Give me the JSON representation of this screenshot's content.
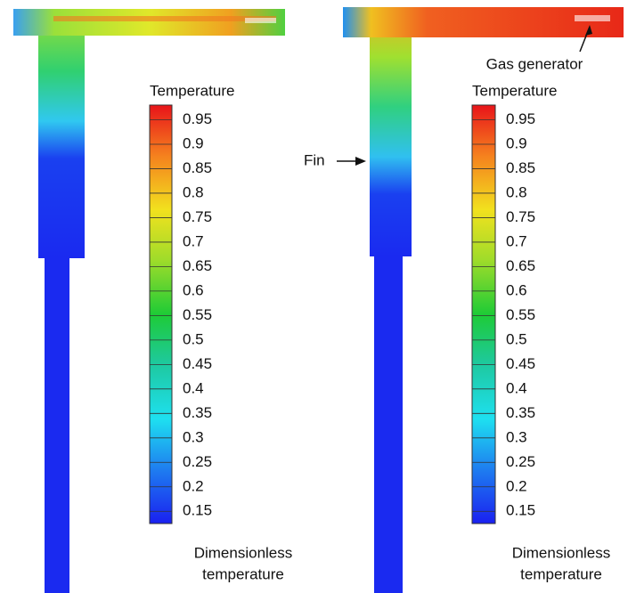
{
  "panels": [
    {
      "colorbar": {
        "title": "Temperature",
        "ticks": [
          0.95,
          0.9,
          0.85,
          0.8,
          0.75,
          0.7,
          0.65,
          0.6,
          0.55,
          0.5,
          0.45,
          0.4,
          0.35,
          0.3,
          0.25,
          0.2,
          0.15
        ]
      },
      "caption": [
        "Dimensionless",
        "temperature"
      ]
    },
    {
      "colorbar": {
        "title": "Temperature",
        "ticks": [
          0.95,
          0.9,
          0.85,
          0.8,
          0.75,
          0.7,
          0.65,
          0.6,
          0.55,
          0.5,
          0.45,
          0.4,
          0.35,
          0.3,
          0.25,
          0.2,
          0.15
        ]
      },
      "caption": [
        "Dimensionless",
        "temperature"
      ],
      "annotations": [
        "Gas generator",
        "Fin"
      ]
    }
  ]
}
